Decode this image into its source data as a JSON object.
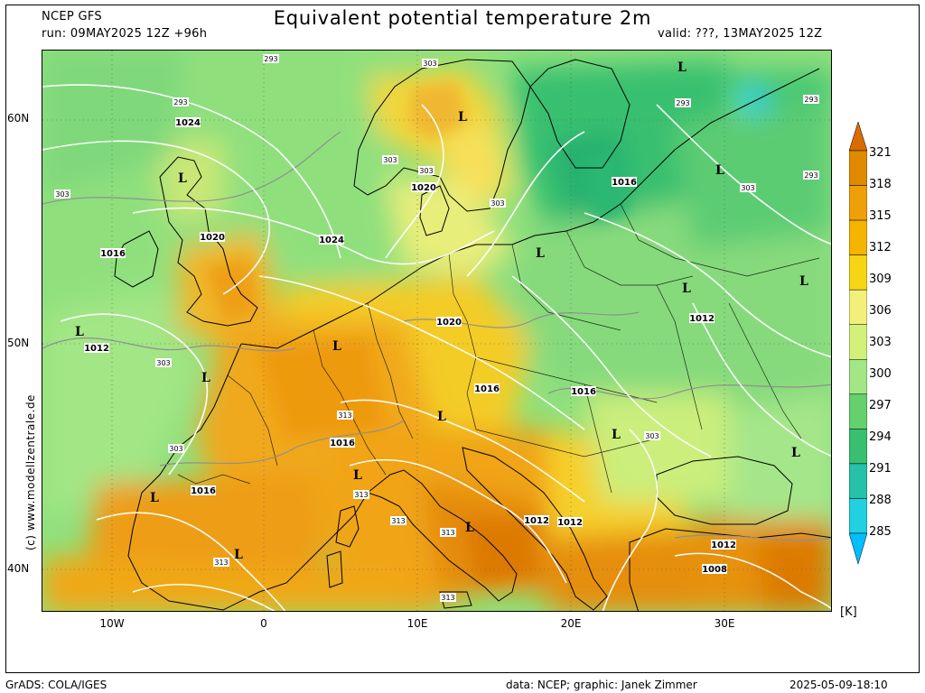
{
  "header": {
    "model": "NCEP GFS",
    "run": "run: 09MAY2025 12Z +96h",
    "title": "Equivalent potential temperature 2m",
    "valid": "valid: ???, 13MAY2025 12Z"
  },
  "axes": {
    "lat_labels": [
      "60N",
      "50N",
      "40N"
    ],
    "lon_labels": [
      "10W",
      "0",
      "10E",
      "20E",
      "30E"
    ]
  },
  "credit": "(c) www.modellzentrale.de",
  "legend": {
    "unit": "[K]",
    "levels": [
      "321",
      "318",
      "315",
      "312",
      "309",
      "306",
      "303",
      "300",
      "297",
      "294",
      "291",
      "288",
      "285"
    ],
    "colors": [
      "#d96c00",
      "#e08a00",
      "#ee9f0a",
      "#f4b400",
      "#f6d514",
      "#f2f07a",
      "#d2f07a",
      "#a2e685",
      "#66d06f",
      "#38c070",
      "#26c1a6",
      "#22d1df",
      "#00bfff"
    ]
  },
  "map": {
    "pressure_labels": [
      "1024",
      "1020",
      "1016",
      "1024",
      "1020",
      "1016",
      "1012",
      "1020",
      "1016",
      "1016",
      "1016",
      "1016",
      "1012",
      "1012",
      "1012",
      "1008",
      "1016",
      "1012"
    ],
    "low_labels": [
      "L",
      "L",
      "L",
      "L",
      "L",
      "L",
      "L",
      "L",
      "L",
      "L",
      "L",
      "L",
      "L",
      "L",
      "L",
      "L",
      "L"
    ],
    "theta_labels": [
      "293",
      "293",
      "303",
      "303",
      "303",
      "303",
      "303",
      "303",
      "303",
      "313",
      "313",
      "313",
      "313",
      "313",
      "313",
      "293",
      "293",
      "303",
      "303",
      "293"
    ]
  },
  "footer": {
    "grads": "GrADS: COLA/IGES",
    "data": "data: NCEP; graphic: Janek Zimmer",
    "timestamp": "2025-05-09-18:10"
  }
}
